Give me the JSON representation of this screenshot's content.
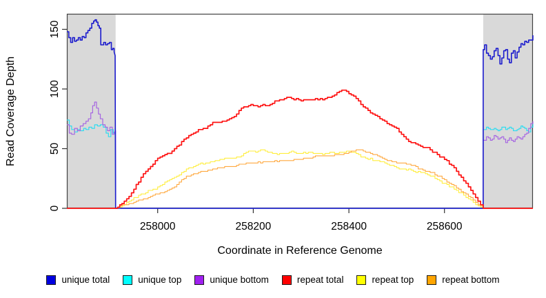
{
  "page": {
    "background": "#ffffff"
  },
  "chart_data": {
    "type": "line",
    "title": "",
    "xlabel": "Coordinate in Reference Genome",
    "ylabel": "Read Coverage Depth",
    "xlim": [
      257810,
      258785
    ],
    "ylim": [
      0,
      163
    ],
    "grid": false,
    "legend_position": "bottom",
    "plot_box_color": "#404040",
    "tick_color": "#303030",
    "shade_color": "#d9d9d9",
    "shaded_regions": [
      {
        "x0": 257810,
        "x1": 257912
      },
      {
        "x0": 258681,
        "x1": 258785
      }
    ],
    "xticks": [
      {
        "value": 258000,
        "label": "258000"
      },
      {
        "value": 258200,
        "label": "258200"
      },
      {
        "value": 258400,
        "label": "258400"
      },
      {
        "value": 258600,
        "label": "258600"
      }
    ],
    "yticks": [
      {
        "value": 0,
        "label": "0"
      },
      {
        "value": 50,
        "label": "50"
      },
      {
        "value": 100,
        "label": "100"
      },
      {
        "value": 150,
        "label": "150"
      }
    ],
    "series": [
      {
        "name": "unique total",
        "color": "#1a1acd",
        "swatch": "#0000e0",
        "width": 1.6,
        "z": 3,
        "jitter": 3,
        "points": [
          [
            257810,
            148
          ],
          [
            257814,
            143
          ],
          [
            257818,
            140
          ],
          [
            257822,
            144
          ],
          [
            257826,
            141
          ],
          [
            257830,
            142
          ],
          [
            257834,
            145
          ],
          [
            257838,
            143
          ],
          [
            257842,
            146
          ],
          [
            257846,
            144
          ],
          [
            257850,
            148
          ],
          [
            257854,
            151
          ],
          [
            257858,
            154
          ],
          [
            257862,
            156
          ],
          [
            257866,
            158
          ],
          [
            257869,
            159
          ],
          [
            257872,
            156
          ],
          [
            257875,
            152
          ],
          [
            257878,
            150
          ],
          [
            257881,
            137
          ],
          [
            257884,
            136
          ],
          [
            257887,
            138
          ],
          [
            257891,
            136
          ],
          [
            257895,
            138
          ],
          [
            257899,
            139
          ],
          [
            257903,
            133
          ],
          [
            257906,
            134
          ],
          [
            257909,
            131
          ],
          [
            257911,
            128
          ],
          [
            257912,
            0
          ],
          [
            258681,
            0
          ],
          [
            258681,
            133
          ],
          [
            258684,
            136
          ],
          [
            258688,
            129
          ],
          [
            258692,
            126
          ],
          [
            258696,
            122
          ],
          [
            258700,
            124
          ],
          [
            258704,
            129
          ],
          [
            258708,
            131
          ],
          [
            258712,
            127
          ],
          [
            258716,
            121
          ],
          [
            258720,
            125
          ],
          [
            258724,
            131
          ],
          [
            258728,
            133
          ],
          [
            258732,
            126
          ],
          [
            258736,
            122
          ],
          [
            258740,
            130
          ],
          [
            258744,
            133
          ],
          [
            258748,
            127
          ],
          [
            258752,
            131
          ],
          [
            258756,
            134
          ],
          [
            258760,
            136
          ],
          [
            258764,
            134
          ],
          [
            258768,
            138
          ],
          [
            258772,
            136
          ],
          [
            258776,
            139
          ],
          [
            258780,
            141
          ],
          [
            258785,
            144
          ]
        ]
      },
      {
        "name": "unique top",
        "color": "#2fdcf0",
        "swatch": "#00ffff",
        "width": 1.2,
        "z": 1,
        "jitter": 2,
        "points": [
          [
            257810,
            74
          ],
          [
            257815,
            70
          ],
          [
            257820,
            66
          ],
          [
            257826,
            64
          ],
          [
            257832,
            67
          ],
          [
            257838,
            66
          ],
          [
            257845,
            68
          ],
          [
            257850,
            67
          ],
          [
            257856,
            69
          ],
          [
            257862,
            68
          ],
          [
            257868,
            70
          ],
          [
            257874,
            69
          ],
          [
            257880,
            70
          ],
          [
            257886,
            68
          ],
          [
            257892,
            63
          ],
          [
            257897,
            61
          ],
          [
            257902,
            66
          ],
          [
            257907,
            63
          ],
          [
            257911,
            67
          ],
          [
            257912,
            0
          ],
          [
            258681,
            0
          ],
          [
            258681,
            66
          ],
          [
            258688,
            69
          ],
          [
            258696,
            66
          ],
          [
            258704,
            67
          ],
          [
            258712,
            65
          ],
          [
            258720,
            68
          ],
          [
            258728,
            65
          ],
          [
            258736,
            67
          ],
          [
            258744,
            64
          ],
          [
            258752,
            66
          ],
          [
            258760,
            68
          ],
          [
            258768,
            66
          ],
          [
            258776,
            64
          ],
          [
            258785,
            71
          ]
        ]
      },
      {
        "name": "unique bottom",
        "color": "#a665e2",
        "swatch": "#a020f0",
        "width": 1.2,
        "z": 2,
        "jitter": 2.5,
        "points": [
          [
            257810,
            70
          ],
          [
            257815,
            64
          ],
          [
            257820,
            62
          ],
          [
            257826,
            66
          ],
          [
            257832,
            64
          ],
          [
            257838,
            67
          ],
          [
            257844,
            69
          ],
          [
            257850,
            71
          ],
          [
            257855,
            73
          ],
          [
            257860,
            79
          ],
          [
            257864,
            85
          ],
          [
            257868,
            87
          ],
          [
            257872,
            82
          ],
          [
            257876,
            78
          ],
          [
            257880,
            74
          ],
          [
            257885,
            70
          ],
          [
            257890,
            67
          ],
          [
            257895,
            65
          ],
          [
            257900,
            67
          ],
          [
            257905,
            61
          ],
          [
            257909,
            63
          ],
          [
            257912,
            64
          ],
          [
            257912,
            0
          ],
          [
            258681,
            0
          ],
          [
            258681,
            57
          ],
          [
            258688,
            60
          ],
          [
            258696,
            56
          ],
          [
            258704,
            60
          ],
          [
            258712,
            58
          ],
          [
            258720,
            61
          ],
          [
            258728,
            57
          ],
          [
            258736,
            60
          ],
          [
            258744,
            58
          ],
          [
            258752,
            62
          ],
          [
            258760,
            60
          ],
          [
            258768,
            63
          ],
          [
            258776,
            68
          ],
          [
            258785,
            74
          ]
        ]
      },
      {
        "name": "repeat total",
        "color": "#fe1212",
        "swatch": "#ff0000",
        "width": 1.7,
        "z": 6,
        "jitter": 2,
        "points": [
          [
            257810,
            0
          ],
          [
            257912,
            0
          ],
          [
            257925,
            4
          ],
          [
            257940,
            10
          ],
          [
            257955,
            20
          ],
          [
            257970,
            29
          ],
          [
            257985,
            35
          ],
          [
            258000,
            43
          ],
          [
            258015,
            45
          ],
          [
            258030,
            47
          ],
          [
            258045,
            52
          ],
          [
            258060,
            58
          ],
          [
            258075,
            62
          ],
          [
            258090,
            65
          ],
          [
            258105,
            68
          ],
          [
            258120,
            72
          ],
          [
            258135,
            74
          ],
          [
            258150,
            77
          ],
          [
            258165,
            80
          ],
          [
            258180,
            84
          ],
          [
            258195,
            86
          ],
          [
            258210,
            85
          ],
          [
            258225,
            87
          ],
          [
            258240,
            88
          ],
          [
            258255,
            90
          ],
          [
            258270,
            92
          ],
          [
            258285,
            91
          ],
          [
            258300,
            90
          ],
          [
            258315,
            91
          ],
          [
            258330,
            92
          ],
          [
            258345,
            91
          ],
          [
            258360,
            94
          ],
          [
            258370,
            96
          ],
          [
            258380,
            99
          ],
          [
            258390,
            98
          ],
          [
            258400,
            95
          ],
          [
            258410,
            93
          ],
          [
            258420,
            90
          ],
          [
            258435,
            85
          ],
          [
            258450,
            80
          ],
          [
            258465,
            76
          ],
          [
            258480,
            71
          ],
          [
            258495,
            68
          ],
          [
            258510,
            62
          ],
          [
            258525,
            58
          ],
          [
            258540,
            55
          ],
          [
            258555,
            52
          ],
          [
            258570,
            49
          ],
          [
            258585,
            45
          ],
          [
            258600,
            41
          ],
          [
            258615,
            34
          ],
          [
            258630,
            27
          ],
          [
            258645,
            19
          ],
          [
            258660,
            10
          ],
          [
            258670,
            5
          ],
          [
            258681,
            0
          ],
          [
            258785,
            0
          ]
        ]
      },
      {
        "name": "repeat top",
        "color": "#ffee3c",
        "swatch": "#ffff00",
        "width": 1.1,
        "z": 4,
        "jitter": 1.5,
        "points": [
          [
            257810,
            0
          ],
          [
            257912,
            0
          ],
          [
            257930,
            3
          ],
          [
            257950,
            8
          ],
          [
            257970,
            12
          ],
          [
            257990,
            16
          ],
          [
            258010,
            20
          ],
          [
            258030,
            26
          ],
          [
            258050,
            31
          ],
          [
            258060,
            34
          ],
          [
            258080,
            37
          ],
          [
            258100,
            38
          ],
          [
            258120,
            40
          ],
          [
            258140,
            42
          ],
          [
            258160,
            43
          ],
          [
            258175,
            44
          ],
          [
            258190,
            49
          ],
          [
            258205,
            48
          ],
          [
            258215,
            49
          ],
          [
            258230,
            48
          ],
          [
            258245,
            47
          ],
          [
            258260,
            46
          ],
          [
            258280,
            47
          ],
          [
            258300,
            46
          ],
          [
            258320,
            47
          ],
          [
            258340,
            45
          ],
          [
            258360,
            46
          ],
          [
            258380,
            47
          ],
          [
            258395,
            48
          ],
          [
            258410,
            46
          ],
          [
            258420,
            44
          ],
          [
            258440,
            41
          ],
          [
            258460,
            39
          ],
          [
            258480,
            36
          ],
          [
            258500,
            34
          ],
          [
            258520,
            32
          ],
          [
            258540,
            31
          ],
          [
            258555,
            30
          ],
          [
            258570,
            27
          ],
          [
            258585,
            24
          ],
          [
            258600,
            21
          ],
          [
            258615,
            17
          ],
          [
            258630,
            13
          ],
          [
            258645,
            9
          ],
          [
            258660,
            5
          ],
          [
            258681,
            0
          ],
          [
            258785,
            0
          ]
        ]
      },
      {
        "name": "repeat bottom",
        "color": "#ffa83e",
        "swatch": "#ffa500",
        "width": 1.1,
        "z": 5,
        "jitter": 1.2,
        "points": [
          [
            257810,
            0
          ],
          [
            257912,
            0
          ],
          [
            257935,
            3
          ],
          [
            257960,
            6
          ],
          [
            257985,
            10
          ],
          [
            258010,
            14
          ],
          [
            258035,
            18
          ],
          [
            258060,
            26
          ],
          [
            258085,
            30
          ],
          [
            258110,
            32
          ],
          [
            258135,
            34
          ],
          [
            258160,
            35
          ],
          [
            258190,
            37
          ],
          [
            258220,
            38
          ],
          [
            258250,
            40
          ],
          [
            258280,
            41
          ],
          [
            258310,
            42
          ],
          [
            258340,
            44
          ],
          [
            258370,
            45
          ],
          [
            258400,
            48
          ],
          [
            258415,
            50
          ],
          [
            258430,
            49
          ],
          [
            258445,
            47
          ],
          [
            258460,
            45
          ],
          [
            258480,
            41
          ],
          [
            258500,
            39
          ],
          [
            258520,
            37
          ],
          [
            258540,
            35
          ],
          [
            258555,
            33
          ],
          [
            258570,
            31
          ],
          [
            258585,
            28
          ],
          [
            258600,
            25
          ],
          [
            258615,
            21
          ],
          [
            258630,
            17
          ],
          [
            258645,
            12
          ],
          [
            258660,
            7
          ],
          [
            258681,
            0
          ],
          [
            258785,
            0
          ]
        ]
      }
    ]
  }
}
